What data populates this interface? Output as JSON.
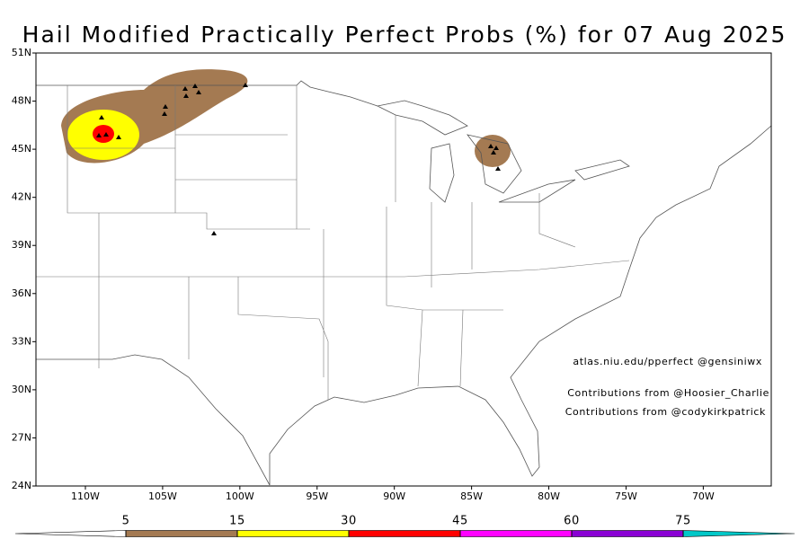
{
  "chart_data": {
    "type": "map",
    "title": "Hail Modified Practically Perfect Probs (%) for 07 Aug 2025",
    "xlim": [
      -113.2,
      -65.6
    ],
    "ylim": [
      24,
      51
    ],
    "xticks": [
      {
        "value": -110,
        "label": "110W"
      },
      {
        "value": -105,
        "label": "105W"
      },
      {
        "value": -100,
        "label": "100W"
      },
      {
        "value": -95,
        "label": "95W"
      },
      {
        "value": -90,
        "label": "90W"
      },
      {
        "value": -85,
        "label": "85W"
      },
      {
        "value": -80,
        "label": "80W"
      },
      {
        "value": -75,
        "label": "75W"
      },
      {
        "value": -70,
        "label": "70W"
      }
    ],
    "yticks": [
      {
        "value": 24,
        "label": "24N"
      },
      {
        "value": 27,
        "label": "27N"
      },
      {
        "value": 30,
        "label": "30N"
      },
      {
        "value": 33,
        "label": "33N"
      },
      {
        "value": 36,
        "label": "36N"
      },
      {
        "value": 39,
        "label": "39N"
      },
      {
        "value": 42,
        "label": "42N"
      },
      {
        "value": 45,
        "label": "45N"
      },
      {
        "value": 48,
        "label": "48N"
      },
      {
        "value": 51,
        "label": "51N"
      }
    ],
    "colorbar": {
      "levels": [
        5,
        15,
        30,
        45,
        60,
        75
      ],
      "colors": [
        "#ffffff",
        "#a47a52",
        "#ffff00",
        "#ff0000",
        "#ff00ff",
        "#8a00d4",
        "#00c8c8"
      ]
    },
    "credits": [
      "atlas.niu.edu/pperfect @gensiniwx",
      "Contributions from @Hoosier_Charlie",
      "Contributions from @codykirkpatrick"
    ]
  }
}
